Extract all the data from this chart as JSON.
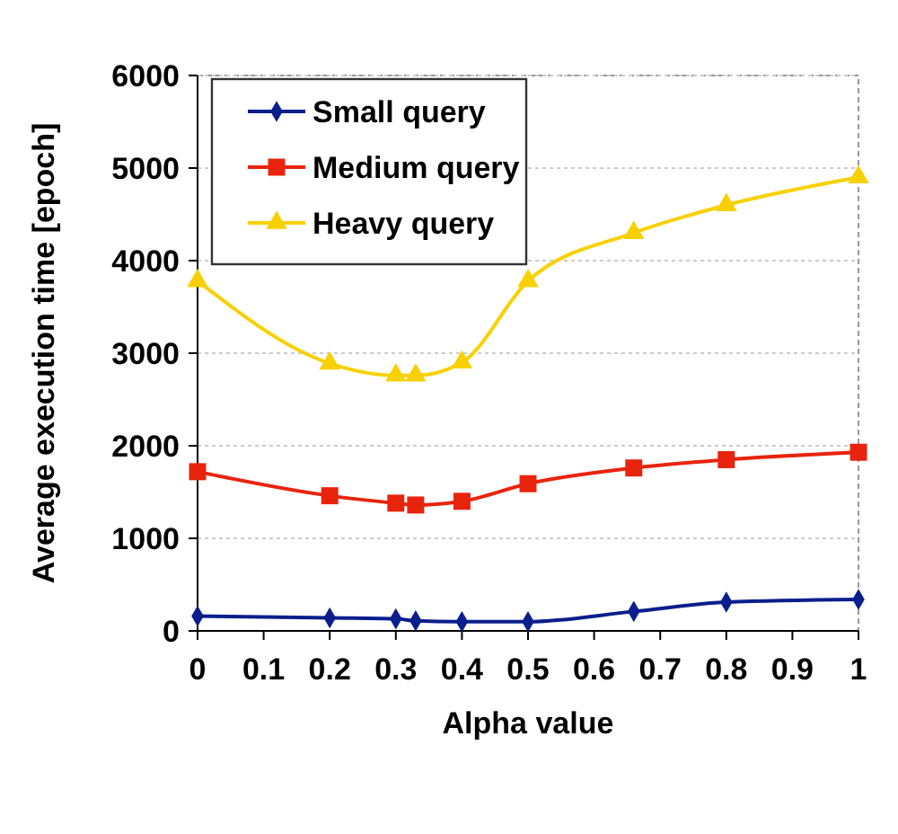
{
  "chart_data": {
    "type": "line",
    "xlabel": "Alpha value",
    "ylabel": "Average execution time [epoch]",
    "x": [
      0,
      0.2,
      0.3,
      0.33,
      0.4,
      0.5,
      0.66,
      0.8,
      1
    ],
    "xlim": [
      0,
      1
    ],
    "xticks": [
      0,
      0.1,
      0.2,
      0.3,
      0.4,
      0.5,
      0.6,
      0.7,
      0.8,
      0.9,
      1
    ],
    "ylim": [
      0,
      6000
    ],
    "yticks": [
      0,
      1000,
      2000,
      3000,
      4000,
      5000,
      6000
    ],
    "grid": "y",
    "legend": "top left",
    "line_style": "solid",
    "series": [
      {
        "name": "Small query",
        "color": "#0a1e8c",
        "marker": "diamond",
        "values": [
          160,
          140,
          130,
          110,
          100,
          100,
          210,
          310,
          340
        ]
      },
      {
        "name": "Medium query",
        "color": "#e8240c",
        "marker": "square",
        "values": [
          1720,
          1460,
          1380,
          1360,
          1400,
          1590,
          1760,
          1850,
          1930
        ]
      },
      {
        "name": "Heavy query",
        "color": "#f8d000",
        "marker": "triangle",
        "values": [
          3780,
          2890,
          2760,
          2760,
          2900,
          3780,
          4300,
          4600,
          4900
        ]
      }
    ]
  }
}
